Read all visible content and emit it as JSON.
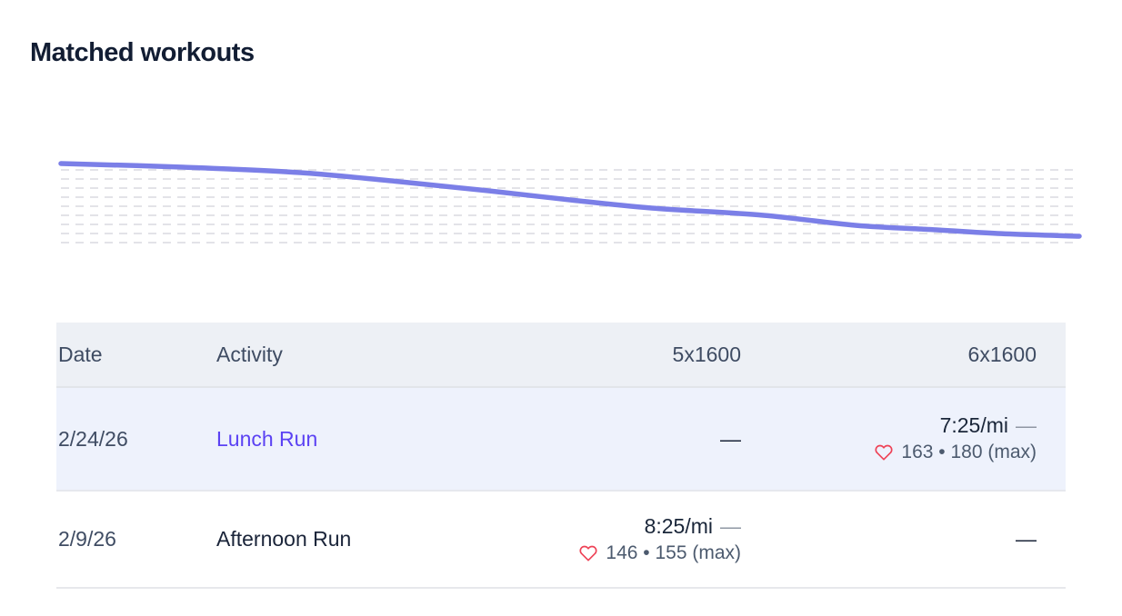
{
  "header": {
    "title": "Matched workouts"
  },
  "colors": {
    "accent_link": "#5b42f3",
    "heart": "#ee4256",
    "chart_line": "#7b7fe7",
    "grid_dash": "#e3e3e8",
    "header_bg": "#edf0f5",
    "row_highlight_bg": "#eef2fc"
  },
  "chart_data": {
    "type": "line",
    "title": "",
    "xlabel": "",
    "ylabel": "",
    "x": [
      0,
      0.12,
      0.235,
      0.333,
      0.42,
      0.5,
      0.58,
      0.69,
      0.78,
      0.86,
      0.92,
      1
    ],
    "values": [
      90,
      86,
      80,
      70,
      60,
      50,
      41,
      33,
      22,
      17,
      13,
      10
    ],
    "xlim": [
      0,
      1
    ],
    "ylim": [
      0,
      100
    ],
    "grid": "dashed-dot-grid",
    "legend": "none",
    "line_color": "#7b7fe7"
  },
  "table": {
    "columns": {
      "date": "Date",
      "activity": "Activity",
      "workout1": "5x1600",
      "workout2": "6x1600"
    },
    "rows": [
      {
        "date": "2/24/26",
        "activity": "Lunch Run",
        "w1": {
          "value": "—"
        },
        "w2": {
          "pace": "7:25/mi",
          "pace_suffix": "—",
          "hr": "163 • 180 (max)"
        }
      },
      {
        "date": "2/9/26",
        "activity": "Afternoon Run",
        "w1": {
          "pace": "8:25/mi",
          "pace_suffix": "—",
          "hr": "146 • 155 (max)"
        },
        "w2": {
          "value": "—"
        }
      }
    ]
  }
}
